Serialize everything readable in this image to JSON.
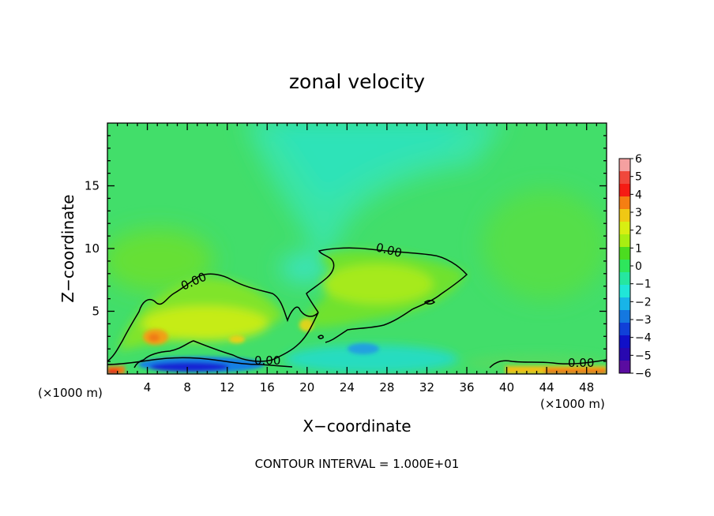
{
  "chart_data": {
    "type": "heatmap",
    "title": "zonal velocity",
    "xlabel": "X−coordinate",
    "ylabel": "Z−coordinate",
    "x_unit": "(×1000 m)",
    "y_unit": "(×1000 m)",
    "xlim": [
      0,
      50
    ],
    "ylim": [
      0,
      20
    ],
    "x_ticks": [
      "4",
      "8",
      "12",
      "16",
      "20",
      "24",
      "28",
      "32",
      "36",
      "40",
      "44",
      "48"
    ],
    "y_ticks": [
      "5",
      "10",
      "15"
    ],
    "colorbar": {
      "range": [
        -6,
        6
      ],
      "ticks": [
        "6",
        "5",
        "4",
        "3",
        "2",
        "1",
        "0",
        "−1",
        "−2",
        "−3",
        "−4",
        "−5",
        "−6"
      ],
      "colors": [
        "#f4a0a0",
        "#f0483c",
        "#f51c14",
        "#f57e12",
        "#f0c814",
        "#d8ee12",
        "#a8ee12",
        "#4cdc20",
        "#2ee65c",
        "#26e6a0",
        "#20e6d8",
        "#18b4e8",
        "#1478e0",
        "#1040d8",
        "#1010c8",
        "#2808b0",
        "#5a0ca0"
      ]
    },
    "contour_labels": [
      "0.00",
      "0.00",
      "0.00",
      "0.00"
    ],
    "footer": "CONTOUR INTERVAL = 1.000E+01"
  }
}
